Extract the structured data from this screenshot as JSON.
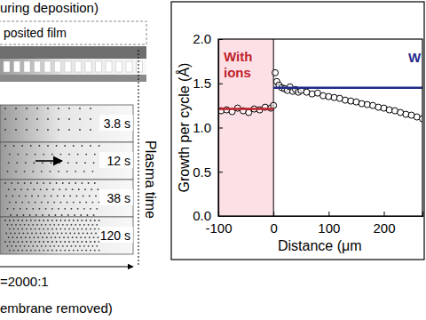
{
  "chart_data": {
    "type": "scatter",
    "xlabel": "Distance (μm",
    "ylabel": "Growth per cycle (Å)",
    "xlim": [
      -100,
      270
    ],
    "ylim": [
      0,
      2.0
    ],
    "xticks": [
      -100,
      0,
      100,
      200
    ],
    "yticks": [
      {
        "value": 0,
        "label": "0.0"
      },
      {
        "value": 0.5,
        "label": "0.5"
      },
      {
        "value": 1.0,
        "label": "1.0"
      },
      {
        "value": 1.5,
        "label": "1.5"
      },
      {
        "value": 2.0,
        "label": "2.0"
      }
    ],
    "grid": false,
    "regions": [
      {
        "x": [
          -100,
          0
        ],
        "color": "#fde0e6"
      }
    ],
    "annotations": [
      {
        "text": "With ions",
        "color": "#c0202a"
      },
      {
        "text": "W",
        "color": "#1f2a8a"
      }
    ],
    "series": [
      {
        "type": "scatter",
        "marker": "circle",
        "color": "#000000",
        "x": [
          -95,
          -85,
          -75,
          -65,
          -55,
          -45,
          -35,
          -25,
          -15,
          -5,
          0,
          3,
          6,
          10,
          15,
          20,
          25,
          30,
          35,
          40,
          45,
          50,
          60,
          70,
          80,
          90,
          100,
          110,
          120,
          130,
          140,
          150,
          160,
          170,
          180,
          190,
          200,
          210,
          220,
          230,
          240,
          250,
          260,
          270
        ],
        "values": [
          1.19,
          1.2,
          1.18,
          1.22,
          1.19,
          1.17,
          1.21,
          1.2,
          1.23,
          1.22,
          1.25,
          1.62,
          1.52,
          1.48,
          1.45,
          1.44,
          1.42,
          1.46,
          1.41,
          1.43,
          1.4,
          1.42,
          1.4,
          1.38,
          1.39,
          1.36,
          1.35,
          1.34,
          1.33,
          1.31,
          1.3,
          1.29,
          1.27,
          1.26,
          1.25,
          1.23,
          1.22,
          1.2,
          1.19,
          1.17,
          1.15,
          1.14,
          1.12,
          1.1
        ]
      },
      {
        "type": "line",
        "line_style": "solid",
        "color": "#c0202a",
        "x": [
          -100,
          0
        ],
        "values": [
          1.21,
          1.21
        ]
      },
      {
        "type": "line",
        "line_style": "solid",
        "color": "#1f2a8a",
        "x": [
          0,
          270
        ],
        "values": [
          1.45,
          1.45
        ]
      }
    ]
  },
  "diagram": {
    "caption_top": "uring deposition)",
    "film": "posited film",
    "panels": [
      "3.8 s",
      "12 s",
      "38 s",
      "120 s"
    ],
    "axis_label": "Plasma time",
    "ratio": "=2000:1",
    "caption_bottom": "embrane removed)"
  }
}
